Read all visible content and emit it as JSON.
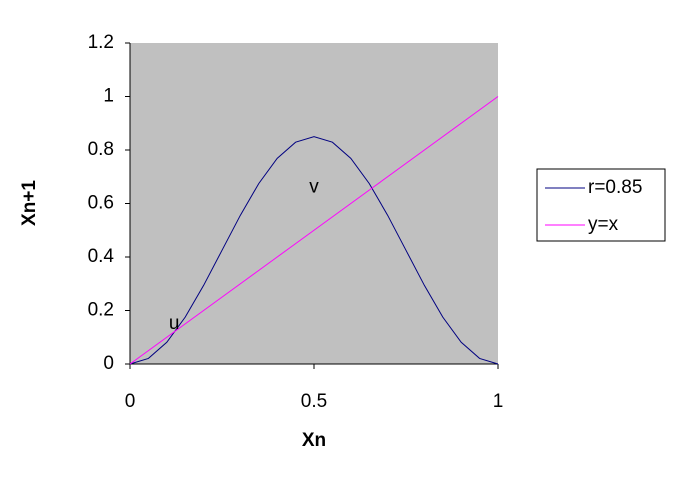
{
  "chart_data": {
    "type": "line",
    "x": [
      0,
      0.05,
      0.1,
      0.15,
      0.2,
      0.25,
      0.3,
      0.35,
      0.4,
      0.45,
      0.5,
      0.55,
      0.6,
      0.65,
      0.7,
      0.75,
      0.8,
      0.85,
      0.9,
      0.95,
      1
    ],
    "series": [
      {
        "name": "r=0.85",
        "color": "#000080",
        "values": [
          0,
          0.0208,
          0.0812,
          0.1752,
          0.2937,
          0.425,
          0.5563,
          0.6748,
          0.7688,
          0.8292,
          0.85,
          0.8292,
          0.7688,
          0.6748,
          0.5563,
          0.425,
          0.2937,
          0.1752,
          0.0812,
          0.0208,
          0
        ]
      },
      {
        "name": "y=x",
        "color": "#ff00ff",
        "values": [
          0,
          0.05,
          0.1,
          0.15,
          0.2,
          0.25,
          0.3,
          0.35,
          0.4,
          0.45,
          0.5,
          0.55,
          0.6,
          0.65,
          0.7,
          0.75,
          0.8,
          0.85,
          0.9,
          0.95,
          1
        ]
      }
    ],
    "xlabel": "Xn",
    "ylabel": "Xn+1",
    "xlim": [
      0,
      1
    ],
    "xticks": [
      0,
      0.5,
      1
    ],
    "ylim": [
      0,
      1.2
    ],
    "yticks": [
      0,
      0.2,
      0.4,
      0.6,
      0.8,
      1,
      1.2
    ],
    "background": "#c0c0c0",
    "annotations": [
      {
        "text": "u",
        "x": 0.12,
        "y": 0.15
      },
      {
        "text": "v",
        "x": 0.5,
        "y": 0.66
      }
    ]
  }
}
